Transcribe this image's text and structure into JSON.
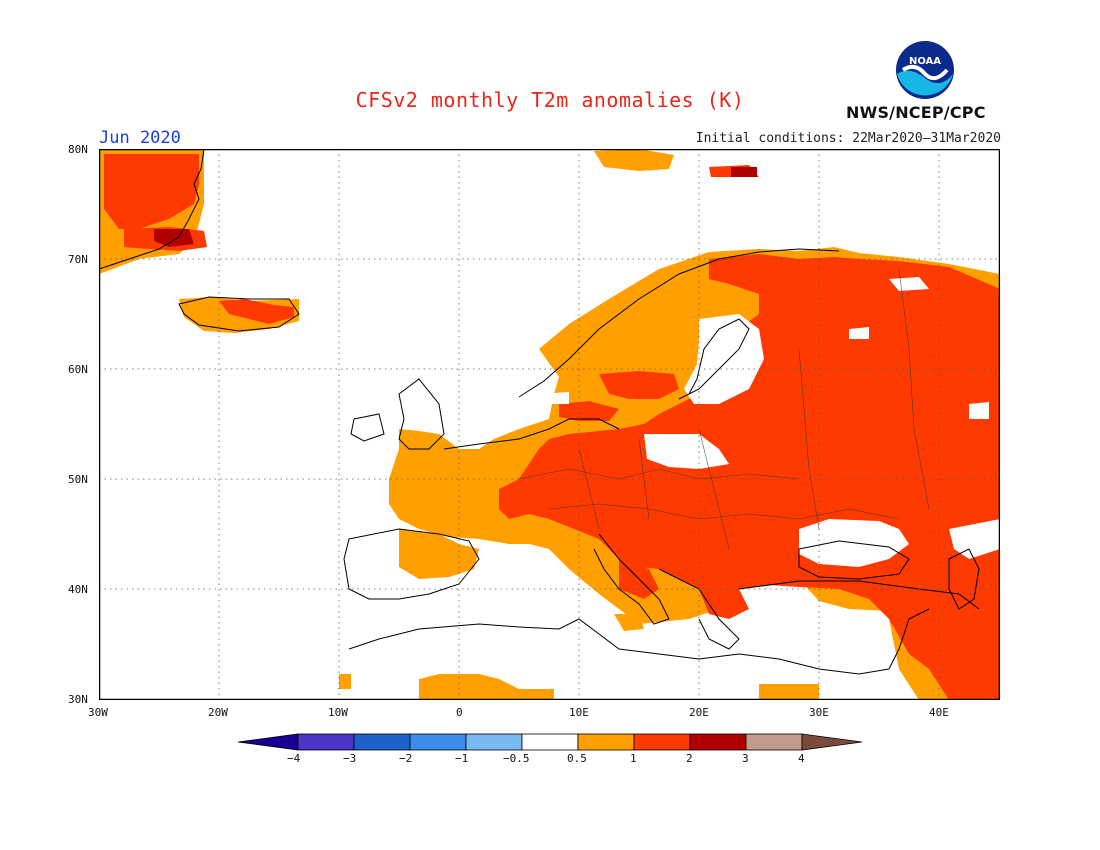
{
  "title": "CFSv2 monthly T2m anomalies (K)",
  "agency": "NWS/NCEP/CPC",
  "logo_text": "NOAA",
  "month": "Jun 2020",
  "initial_conditions": "Initial conditions: 22Mar2020–31Mar2020",
  "lat_labels": [
    "80N",
    "70N",
    "60N",
    "50N",
    "40N",
    "30N"
  ],
  "lon_labels": [
    "30W",
    "20W",
    "10W",
    "0",
    "10E",
    "20E",
    "30E",
    "40E"
  ],
  "colorbar": {
    "ticks": [
      "−4",
      "−3",
      "−2",
      "−1",
      "−0.5",
      "0.5",
      "1",
      "2",
      "3",
      "4"
    ],
    "colors": [
      "#1a0091",
      "#4b35c9",
      "#1e62c9",
      "#3d8be8",
      "#7ab8f2",
      "#ffffff",
      "#ffa000",
      "#ff3a00",
      "#b00000",
      "#c49a8a",
      "#7a4a3a"
    ]
  }
}
